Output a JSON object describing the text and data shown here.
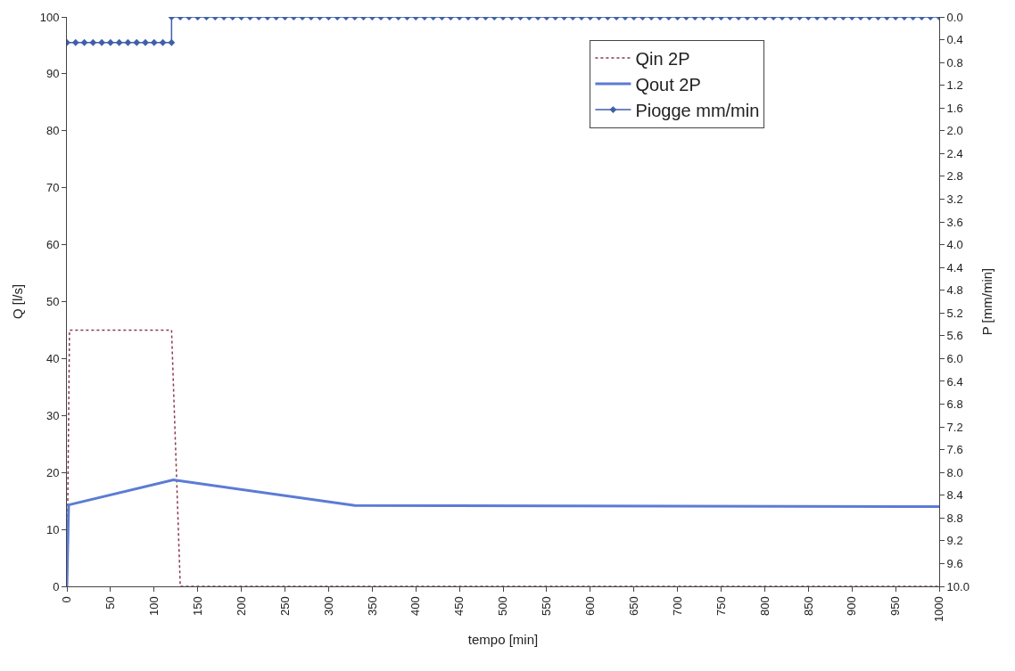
{
  "chart_data": {
    "type": "line",
    "xlabel": "tempo [min]",
    "ylabel": "Q [l/s]",
    "y2label": "P [mm/min]",
    "xlim": [
      0,
      1000
    ],
    "xticks": [
      0,
      50,
      100,
      150,
      200,
      250,
      300,
      350,
      400,
      450,
      500,
      550,
      600,
      650,
      700,
      750,
      800,
      850,
      900,
      950,
      1000
    ],
    "ylim": [
      0,
      100
    ],
    "yticks": [
      0,
      10,
      20,
      30,
      40,
      50,
      60,
      70,
      80,
      90,
      100
    ],
    "y2lim": [
      10,
      0
    ],
    "y2ticks": [
      {
        "value": 0,
        "label": "0.0"
      },
      {
        "value": 0.4,
        "label": "0.4"
      },
      {
        "value": 0.8,
        "label": "0.8"
      },
      {
        "value": 1.2,
        "label": "1.2"
      },
      {
        "value": 1.6,
        "label": "1.6"
      },
      {
        "value": 2,
        "label": "2.0"
      },
      {
        "value": 2.4,
        "label": "2.4"
      },
      {
        "value": 2.8,
        "label": "2.8"
      },
      {
        "value": 3.2,
        "label": "3.2"
      },
      {
        "value": 3.6,
        "label": "3.6"
      },
      {
        "value": 4,
        "label": "4.0"
      },
      {
        "value": 4.4,
        "label": "4.4"
      },
      {
        "value": 4.8,
        "label": "4.8"
      },
      {
        "value": 5.2,
        "label": "5.2"
      },
      {
        "value": 5.6,
        "label": "5.6"
      },
      {
        "value": 6,
        "label": "6.0"
      },
      {
        "value": 6.4,
        "label": "6.4"
      },
      {
        "value": 6.8,
        "label": "6.8"
      },
      {
        "value": 7.2,
        "label": "7.2"
      },
      {
        "value": 7.6,
        "label": "7.6"
      },
      {
        "value": 8,
        "label": "8.0"
      },
      {
        "value": 8.4,
        "label": "8.4"
      },
      {
        "value": 8.8,
        "label": "8.8"
      },
      {
        "value": 9.2,
        "label": "9.2"
      },
      {
        "value": 9.6,
        "label": "9.6"
      },
      {
        "value": 10,
        "label": "10.0"
      }
    ],
    "legend": "top right",
    "series": [
      {
        "name": "Qin 2P",
        "color": "#8b3a4a",
        "line_style": "dotted",
        "marker": "none",
        "x": [
          0,
          3,
          120,
          130,
          1000
        ],
        "values": [
          0,
          45,
          45,
          0,
          0
        ]
      },
      {
        "name": "Qout 2P",
        "color": "#5b7bd5",
        "line_style": "solid",
        "marker": "none",
        "x": [
          0,
          2,
          122,
          330,
          1000
        ],
        "values": [
          0,
          14.3,
          18.7,
          14.2,
          14
        ]
      },
      {
        "name": "Piogge mm/min",
        "color": "#3f5faa",
        "line_style": "solid",
        "marker": "diamond",
        "axis": "y2",
        "x": [
          0,
          10,
          20,
          30,
          40,
          50,
          60,
          70,
          80,
          90,
          100,
          110,
          120,
          120,
          130,
          140,
          150,
          160,
          170,
          180,
          190,
          200,
          210,
          220,
          230,
          240,
          250,
          260,
          270,
          280,
          290,
          300,
          310,
          320,
          330,
          340,
          350,
          360,
          370,
          380,
          390,
          400,
          410,
          420,
          430,
          440,
          450,
          460,
          470,
          480,
          490,
          500,
          510,
          520,
          530,
          540,
          550,
          560,
          570,
          580,
          590,
          600,
          610,
          620,
          630,
          640,
          650,
          660,
          670,
          680,
          690,
          700,
          710,
          720,
          730,
          740,
          750,
          760,
          770,
          780,
          790,
          800,
          810,
          820,
          830,
          840,
          850,
          860,
          870,
          880,
          890,
          900,
          910,
          920,
          930,
          940,
          950,
          960,
          970,
          980,
          990,
          1000
        ],
        "values": [
          0.45,
          0.45,
          0.45,
          0.45,
          0.45,
          0.45,
          0.45,
          0.45,
          0.45,
          0.45,
          0.45,
          0.45,
          0.45,
          0,
          0,
          0,
          0,
          0,
          0,
          0,
          0,
          0,
          0,
          0,
          0,
          0,
          0,
          0,
          0,
          0,
          0,
          0,
          0,
          0,
          0,
          0,
          0,
          0,
          0,
          0,
          0,
          0,
          0,
          0,
          0,
          0,
          0,
          0,
          0,
          0,
          0,
          0,
          0,
          0,
          0,
          0,
          0,
          0,
          0,
          0,
          0,
          0,
          0,
          0,
          0,
          0,
          0,
          0,
          0,
          0,
          0,
          0,
          0,
          0,
          0,
          0,
          0,
          0,
          0,
          0,
          0,
          0,
          0,
          0,
          0,
          0,
          0,
          0,
          0,
          0,
          0,
          0,
          0,
          0,
          0,
          0,
          0,
          0,
          0,
          0,
          0,
          0
        ]
      }
    ]
  }
}
